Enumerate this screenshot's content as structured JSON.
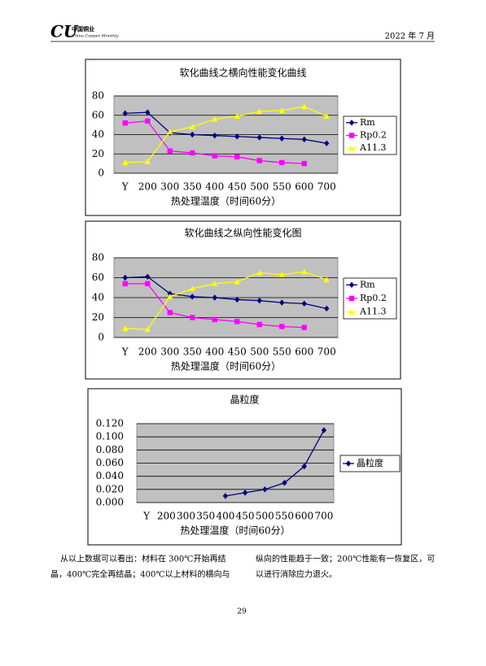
{
  "header": {
    "logo": "CU",
    "journal_cn": "中国铜业",
    "journal_en": "China Copper Monthly",
    "issue": "2022 年 7 月"
  },
  "chart_data": [
    {
      "type": "line",
      "title": "软化曲线之横向性能变化曲线",
      "x_label": "热处理温度（时间60分）",
      "categories": [
        "Y",
        "200",
        "300",
        "350",
        "400",
        "450",
        "500",
        "550",
        "600",
        "700"
      ],
      "ylim": [
        0,
        80
      ],
      "yticks": [
        0,
        20,
        40,
        60,
        80
      ],
      "grid": true,
      "legend": "right",
      "series": [
        {
          "name": "Rm",
          "color": "#000080",
          "marker": "diamond",
          "values": [
            62,
            63,
            42,
            40,
            39,
            38,
            37,
            36,
            35,
            31
          ]
        },
        {
          "name": "Rp0.2",
          "color": "#ff00ff",
          "marker": "square",
          "values": [
            52,
            54,
            23,
            21,
            18,
            17,
            13,
            11,
            10,
            null
          ]
        },
        {
          "name": "A11.3",
          "color": "#ffff00",
          "marker": "triangle",
          "values": [
            11,
            12,
            43,
            48,
            56,
            59,
            64,
            65,
            69,
            59
          ]
        }
      ]
    },
    {
      "type": "line",
      "title": "软化曲线之纵向性能变化图",
      "x_label": "热处理温度（时间60分）",
      "categories": [
        "Y",
        "200",
        "300",
        "350",
        "400",
        "450",
        "500",
        "550",
        "600",
        "700"
      ],
      "ylim": [
        0,
        80
      ],
      "yticks": [
        0,
        20,
        40,
        60,
        80
      ],
      "grid": true,
      "legend": "right",
      "series": [
        {
          "name": "Rm",
          "color": "#000080",
          "marker": "diamond",
          "values": [
            60,
            61,
            44,
            41,
            40,
            38,
            37,
            35,
            34,
            29
          ]
        },
        {
          "name": "Rp0.2",
          "color": "#ff00ff",
          "marker": "square",
          "values": [
            54,
            54,
            25,
            20,
            18,
            16,
            13,
            11,
            10,
            null
          ]
        },
        {
          "name": "A11.3",
          "color": "#ffff00",
          "marker": "triangle",
          "values": [
            9,
            8,
            41,
            49,
            54,
            56,
            65,
            63,
            66,
            58
          ]
        }
      ]
    },
    {
      "type": "line",
      "title": "晶粒度",
      "x_label": "热处理温度（时间60分）",
      "categories": [
        "Y",
        "200",
        "300",
        "350",
        "400",
        "450",
        "500",
        "550",
        "600",
        "700"
      ],
      "ylim": [
        0,
        0.12
      ],
      "yticks": [
        {
          "value": 0,
          "label": "0.000"
        },
        {
          "value": 0.02,
          "label": "0.020"
        },
        {
          "value": 0.04,
          "label": "0.040"
        },
        {
          "value": 0.06,
          "label": "0.060"
        },
        {
          "value": 0.08,
          "label": "0.080"
        },
        {
          "value": 0.1,
          "label": "0.100"
        },
        {
          "value": 0.12,
          "label": "0.120"
        }
      ],
      "grid": true,
      "legend": "right",
      "series": [
        {
          "name": "晶粒度",
          "color": "#000080",
          "marker": "diamond",
          "values": [
            null,
            null,
            null,
            null,
            0.01,
            0.015,
            0.02,
            0.03,
            0.055,
            0.11
          ]
        }
      ]
    }
  ],
  "body": {
    "left_lines": [
      "从以上数据可以看出：材料在 300℃开始再结",
      "晶，400℃完全再结晶；400℃以上材料的横向与"
    ],
    "right_lines": [
      "纵向的性能趋于一致；200℃性能有一恢复区，可",
      "以进行消除应力退火。"
    ]
  },
  "page_number": "29"
}
